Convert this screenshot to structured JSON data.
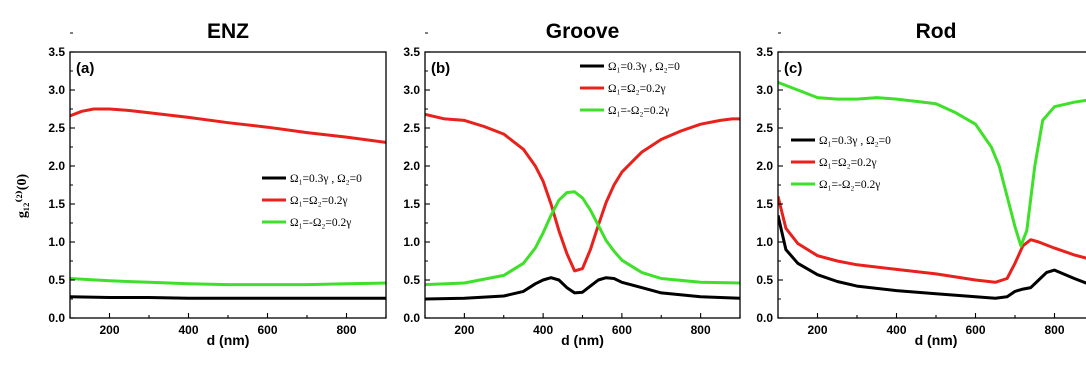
{
  "figure": {
    "ylabel": "g₁₂⁽²⁾(0)"
  },
  "chart_data": [
    {
      "type": "line",
      "title": "ENZ",
      "panel_label": "(a)",
      "xlabel": "d (nm)",
      "ylabel": "g₁₂⁽²⁾(0)",
      "xlim": [
        100,
        900
      ],
      "ylim": [
        0.0,
        3.5
      ],
      "xticks": [
        200,
        400,
        600,
        800
      ],
      "yticks": [
        0.0,
        0.5,
        1.0,
        1.5,
        2.0,
        2.5,
        3.0,
        3.5
      ],
      "legend_placement": "center-right",
      "series": [
        {
          "name": "Ω₁=0.3γ , Ω₂=0",
          "color": "#000000",
          "x": [
            100,
            200,
            300,
            400,
            500,
            600,
            700,
            800,
            900
          ],
          "y": [
            0.28,
            0.27,
            0.27,
            0.26,
            0.26,
            0.26,
            0.26,
            0.26,
            0.26
          ]
        },
        {
          "name": "Ω₁=Ω₂=0.2γ",
          "color": "#e8211c",
          "x": [
            100,
            130,
            160,
            200,
            250,
            300,
            400,
            500,
            600,
            700,
            800,
            900
          ],
          "y": [
            2.66,
            2.72,
            2.75,
            2.75,
            2.73,
            2.7,
            2.64,
            2.57,
            2.51,
            2.44,
            2.38,
            2.31
          ]
        },
        {
          "name": "Ω₁=-Ω₂=0.2γ",
          "color": "#3ee02a",
          "x": [
            100,
            200,
            300,
            400,
            500,
            600,
            700,
            800,
            900
          ],
          "y": [
            0.52,
            0.49,
            0.47,
            0.45,
            0.44,
            0.44,
            0.44,
            0.45,
            0.46
          ]
        }
      ]
    },
    {
      "type": "line",
      "title": "Groove",
      "panel_label": "(b)",
      "xlabel": "d (nm)",
      "xlim": [
        100,
        900
      ],
      "ylim": [
        0.0,
        3.5
      ],
      "xticks": [
        200,
        400,
        600,
        800
      ],
      "yticks": [
        0.0,
        0.5,
        1.0,
        1.5,
        2.0,
        2.5,
        3.0,
        3.5
      ],
      "legend_placement": "top-right",
      "series": [
        {
          "name": "Ω₁=0.3γ , Ω₂=0",
          "color": "#000000",
          "x": [
            100,
            200,
            300,
            350,
            380,
            400,
            420,
            440,
            460,
            480,
            500,
            520,
            540,
            560,
            580,
            600,
            650,
            700,
            800,
            900
          ],
          "y": [
            0.25,
            0.26,
            0.29,
            0.35,
            0.45,
            0.5,
            0.53,
            0.5,
            0.4,
            0.33,
            0.34,
            0.42,
            0.5,
            0.53,
            0.52,
            0.47,
            0.4,
            0.33,
            0.28,
            0.26
          ]
        },
        {
          "name": "Ω₁=Ω₂=0.2γ",
          "color": "#e8211c",
          "x": [
            100,
            150,
            200,
            250,
            300,
            350,
            380,
            400,
            420,
            440,
            460,
            480,
            500,
            520,
            540,
            560,
            580,
            600,
            650,
            700,
            750,
            800,
            850,
            880,
            900
          ],
          "y": [
            2.68,
            2.62,
            2.6,
            2.52,
            2.42,
            2.22,
            2.0,
            1.8,
            1.5,
            1.15,
            0.85,
            0.62,
            0.65,
            0.9,
            1.22,
            1.52,
            1.75,
            1.92,
            2.18,
            2.35,
            2.46,
            2.55,
            2.6,
            2.62,
            2.62
          ]
        },
        {
          "name": "Ω₁=-Ω₂=0.2γ",
          "color": "#3ee02a",
          "x": [
            100,
            200,
            300,
            350,
            380,
            400,
            420,
            440,
            460,
            480,
            500,
            520,
            540,
            560,
            580,
            600,
            650,
            700,
            800,
            900
          ],
          "y": [
            0.44,
            0.46,
            0.56,
            0.72,
            0.92,
            1.12,
            1.35,
            1.55,
            1.65,
            1.66,
            1.58,
            1.42,
            1.22,
            1.02,
            0.88,
            0.76,
            0.6,
            0.52,
            0.47,
            0.46
          ]
        }
      ]
    },
    {
      "type": "line",
      "title": "Rod",
      "panel_label": "(c)",
      "xlabel": "d (nm)",
      "xlim": [
        100,
        900
      ],
      "ylim": [
        0.0,
        3.5
      ],
      "xticks": [
        200,
        400,
        600,
        800
      ],
      "yticks": [
        0.0,
        0.5,
        1.0,
        1.5,
        2.0,
        2.5,
        3.0,
        3.5
      ],
      "legend_placement": "center-left",
      "series": [
        {
          "name": "Ω₁=0.3γ , Ω₂=0",
          "color": "#000000",
          "x": [
            100,
            120,
            150,
            200,
            250,
            300,
            400,
            500,
            600,
            650,
            680,
            700,
            720,
            740,
            760,
            780,
            800,
            850,
            900
          ],
          "y": [
            1.35,
            0.9,
            0.72,
            0.57,
            0.48,
            0.42,
            0.36,
            0.32,
            0.28,
            0.26,
            0.28,
            0.35,
            0.38,
            0.4,
            0.5,
            0.6,
            0.63,
            0.52,
            0.42
          ]
        },
        {
          "name": "Ω₁=Ω₂=0.2γ",
          "color": "#e8211c",
          "x": [
            100,
            120,
            150,
            200,
            250,
            300,
            400,
            500,
            600,
            650,
            680,
            700,
            720,
            740,
            760,
            800,
            850,
            900
          ],
          "y": [
            1.6,
            1.18,
            0.98,
            0.82,
            0.75,
            0.7,
            0.64,
            0.58,
            0.5,
            0.47,
            0.52,
            0.72,
            0.95,
            1.03,
            1.0,
            0.92,
            0.83,
            0.76
          ]
        },
        {
          "name": "Ω₁=-Ω₂=0.2γ",
          "color": "#3ee02a",
          "x": [
            100,
            150,
            200,
            250,
            300,
            350,
            400,
            450,
            500,
            550,
            600,
            620,
            640,
            660,
            680,
            700,
            715,
            730,
            750,
            770,
            800,
            850,
            900
          ],
          "y": [
            3.1,
            3.0,
            2.9,
            2.88,
            2.88,
            2.9,
            2.88,
            2.85,
            2.82,
            2.7,
            2.55,
            2.4,
            2.25,
            2.0,
            1.6,
            1.2,
            0.95,
            1.15,
            2.0,
            2.6,
            2.78,
            2.84,
            2.88
          ]
        }
      ]
    }
  ]
}
